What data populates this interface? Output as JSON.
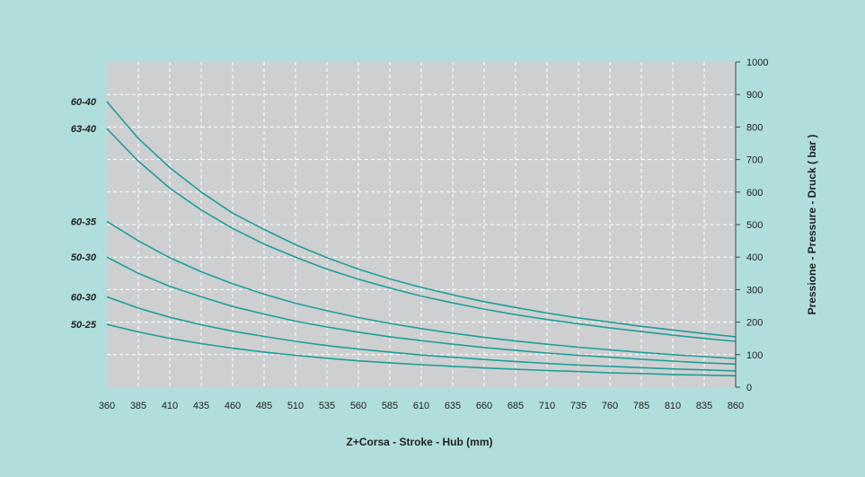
{
  "chart_data": {
    "type": "line",
    "title": "",
    "xlabel": "Z+Corsa - Stroke - Hub  (mm)",
    "ylabel": "Pressione - Pressure - Druck ( bar )",
    "xlim": [
      360,
      860
    ],
    "ylim": [
      0,
      1000
    ],
    "x_ticks": [
      360,
      385,
      410,
      435,
      460,
      485,
      510,
      535,
      560,
      585,
      610,
      635,
      660,
      685,
      710,
      735,
      760,
      785,
      810,
      835,
      860
    ],
    "y_ticks": [
      0,
      100,
      200,
      300,
      400,
      500,
      600,
      700,
      800,
      900,
      1000
    ],
    "y_axis_side": "right",
    "grid": true,
    "x": [
      360,
      385,
      410,
      435,
      460,
      485,
      510,
      535,
      560,
      585,
      610,
      635,
      660,
      685,
      710,
      735,
      760,
      785,
      810,
      835,
      860
    ],
    "series": [
      {
        "name": "60-40",
        "values": [
          878,
          765,
          675,
          600,
          535,
          485,
          438,
          398,
          363,
          333,
          307,
          284,
          263,
          245,
          228,
          213,
          200,
          187,
          176,
          165,
          155
        ]
      },
      {
        "name": "63-40",
        "values": [
          795,
          695,
          612,
          545,
          488,
          440,
          400,
          363,
          332,
          305,
          280,
          259,
          240,
          223,
          208,
          195,
          182,
          171,
          160,
          150,
          141
        ]
      },
      {
        "name": "60-35",
        "values": [
          510,
          450,
          398,
          355,
          318,
          286,
          258,
          235,
          214,
          196,
          180,
          166,
          153,
          142,
          132,
          123,
          115,
          107,
          100,
          94,
          88
        ]
      },
      {
        "name": "50-30",
        "values": [
          400,
          350,
          310,
          278,
          248,
          225,
          203,
          185,
          169,
          155,
          143,
          132,
          122,
          113,
          105,
          98,
          92,
          86,
          80,
          75,
          71
        ]
      },
      {
        "name": "60-30",
        "values": [
          278,
          243,
          215,
          192,
          172,
          156,
          141,
          128,
          117,
          108,
          99,
          92,
          85,
          79,
          73,
          68,
          64,
          60,
          56,
          53,
          50
        ]
      },
      {
        "name": "50-25",
        "values": [
          193,
          170,
          150,
          134,
          120,
          108,
          98,
          89,
          81,
          75,
          69,
          64,
          59,
          55,
          51,
          48,
          44,
          42,
          39,
          37,
          35
        ]
      }
    ],
    "colors": {
      "background": "#b0dedd",
      "plot_area": "#cdcfd1",
      "grid": "#ffffff",
      "line": "#1e9f97",
      "text": "#222222"
    }
  }
}
